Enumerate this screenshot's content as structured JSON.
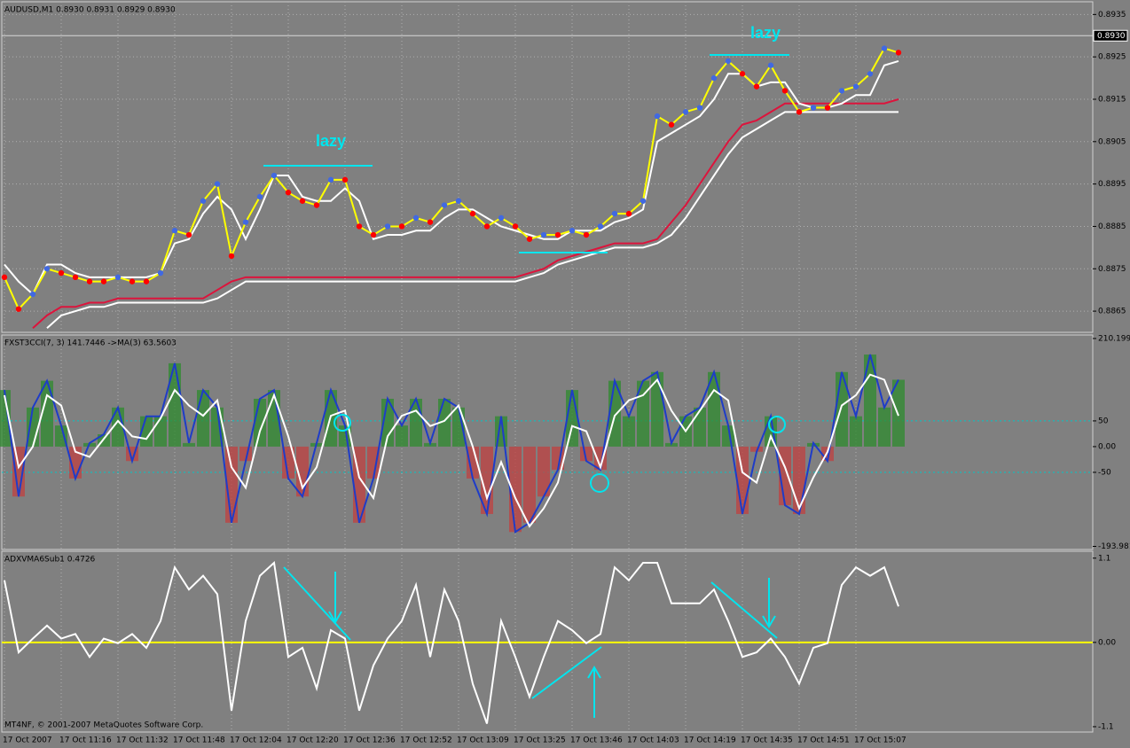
{
  "chart_data": [
    {
      "type": "line",
      "title": "AUDUSD,M1  0.8930 0.8931 0.8929 0.8930",
      "ylim": [
        0.886,
        0.8938
      ],
      "yticks": [
        0.8865,
        0.8875,
        0.8885,
        0.8895,
        0.8905,
        0.8915,
        0.8925,
        0.8935
      ],
      "grid": true,
      "price_label": {
        "value": 0.893,
        "label": "0.8930"
      },
      "annotations": [
        "lazy",
        "lazy"
      ],
      "series": [
        {
          "color": "#dc143c",
          "values": [
            null,
            null,
            0.8861,
            0.8864,
            0.8866,
            0.8866,
            0.8867,
            0.8867,
            0.8868,
            0.8868,
            0.8868,
            0.8868,
            0.8868,
            0.8868,
            0.8868,
            0.887,
            0.8872,
            0.8873,
            0.8873,
            0.8873,
            0.8873,
            0.8873,
            0.8873,
            0.8873,
            0.8873,
            0.8873,
            0.8873,
            0.8873,
            0.8873,
            0.8873,
            0.8873,
            0.8873,
            0.8873,
            0.8873,
            0.8873,
            0.8873,
            0.8873,
            0.8874,
            0.8875,
            0.8877,
            0.8878,
            0.8879,
            0.888,
            0.8881,
            0.8881,
            0.8881,
            0.8882,
            0.8886,
            0.889,
            0.8895,
            0.89,
            0.8905,
            0.8909,
            0.891,
            0.8912,
            0.8914,
            0.8914,
            0.8914,
            0.8914,
            0.8914,
            0.8914,
            0.8914,
            0.8914,
            0.8915
          ]
        },
        {
          "color": "#ffffff",
          "values": [
            null,
            null,
            null,
            0.8861,
            0.8864,
            0.8865,
            0.8866,
            0.8866,
            0.8867,
            0.8867,
            0.8867,
            0.8867,
            0.8867,
            0.8867,
            0.8867,
            0.8868,
            0.887,
            0.8872,
            0.8872,
            0.8872,
            0.8872,
            0.8872,
            0.8872,
            0.8872,
            0.8872,
            0.8872,
            0.8872,
            0.8872,
            0.8872,
            0.8872,
            0.8872,
            0.8872,
            0.8872,
            0.8872,
            0.8872,
            0.8872,
            0.8872,
            0.8873,
            0.8874,
            0.8876,
            0.8877,
            0.8878,
            0.8879,
            0.888,
            0.888,
            0.888,
            0.8881,
            0.8883,
            0.8887,
            0.8892,
            0.8897,
            0.8902,
            0.8906,
            0.8908,
            0.891,
            0.8912,
            0.8912,
            0.8912,
            0.8912,
            0.8912,
            0.8912,
            0.8912,
            0.8912,
            0.8912
          ]
        },
        {
          "color": "#ffffff",
          "values": [
            0.8876,
            0.8872,
            0.8869,
            0.8876,
            0.8876,
            0.8874,
            0.8873,
            0.8873,
            0.8873,
            0.8873,
            0.8873,
            0.8874,
            0.8881,
            0.8882,
            0.8888,
            0.8892,
            0.8889,
            0.8882,
            0.8889,
            0.8897,
            0.8897,
            0.8892,
            0.8891,
            0.8891,
            0.8894,
            0.8891,
            0.8882,
            0.8883,
            0.8883,
            0.8884,
            0.8884,
            0.8887,
            0.8889,
            0.8889,
            0.8887,
            0.8885,
            0.8884,
            0.8883,
            0.8882,
            0.8882,
            0.8884,
            0.8884,
            0.8884,
            0.8886,
            0.8887,
            0.8889,
            0.8905,
            0.8907,
            0.8909,
            0.8911,
            0.8915,
            0.8921,
            0.8921,
            0.8918,
            0.8919,
            0.8919,
            0.8914,
            0.8913,
            0.8913,
            0.8914,
            0.8916,
            0.8916,
            0.8923,
            0.8924
          ]
        },
        {
          "color": "#ffff00",
          "style": "dots",
          "up_color": "#4169e1",
          "down_color": "#ff0000",
          "values": [
            0.8873,
            0.88655,
            0.8869,
            0.8875,
            0.8874,
            0.8873,
            0.8872,
            0.8872,
            0.8873,
            0.8872,
            0.8872,
            0.8874,
            0.8884,
            0.8883,
            0.8891,
            0.8895,
            0.8878,
            0.8886,
            0.8892,
            0.8897,
            0.8893,
            0.8891,
            0.889,
            0.8896,
            0.8896,
            0.8885,
            0.8883,
            0.8885,
            0.8885,
            0.8887,
            0.8886,
            0.889,
            0.8891,
            0.8888,
            0.8885,
            0.8887,
            0.8885,
            0.8882,
            0.8883,
            0.8883,
            0.8884,
            0.8883,
            0.8885,
            0.8888,
            0.8888,
            0.8891,
            0.8911,
            0.8909,
            0.8912,
            0.8913,
            0.892,
            0.8924,
            0.8921,
            0.8918,
            0.8923,
            0.8917,
            0.8912,
            0.8913,
            0.8913,
            0.8917,
            0.8918,
            0.8921,
            0.8927,
            0.8926
          ]
        }
      ]
    },
    {
      "type": "line",
      "title": "FXST3CCI(7, 3) 141.7446  ->MA(3) 63.5603",
      "ylim": [
        -200,
        217
      ],
      "yticks": [
        {
          "value": 210.199,
          "label": "210.1990"
        },
        50,
        {
          "value": 0,
          "label": "0.00"
        },
        -50,
        {
          "value": -193.981,
          "label": "-193.981"
        }
      ],
      "grid": false,
      "levels": [
        50,
        -50
      ],
      "level_color": "#00c8c8",
      "level_style": "dashed",
      "histogram": true,
      "hist_colors": [
        "#2e8b2e",
        "#c04040"
      ],
      "series": [
        {
          "color": "#1e3cc8",
          "values": [
            110,
            -97,
            76,
            128,
            41,
            -62,
            7,
            24,
            76,
            -28,
            59,
            59,
            162,
            7,
            110,
            76,
            -148,
            -28,
            93,
            110,
            -62,
            -97,
            7,
            110,
            41,
            -148,
            -62,
            93,
            41,
            93,
            7,
            93,
            76,
            -62,
            -131,
            59,
            -166,
            -148,
            -97,
            -45,
            110,
            -28,
            -45,
            128,
            59,
            128,
            145,
            7,
            59,
            76,
            145,
            41,
            -131,
            -10,
            59,
            -114,
            -131,
            7,
            -28,
            145,
            59,
            179,
            76,
            130
          ]
        },
        {
          "color": "#ffffff",
          "values": [
            100,
            -40,
            0,
            100,
            80,
            -10,
            -20,
            15,
            50,
            20,
            15,
            55,
            110,
            80,
            60,
            90,
            -40,
            -80,
            30,
            100,
            20,
            -80,
            -40,
            60,
            70,
            -60,
            -100,
            20,
            60,
            70,
            40,
            50,
            80,
            0,
            -100,
            -30,
            -100,
            -155,
            -120,
            -70,
            40,
            30,
            -40,
            60,
            90,
            100,
            130,
            70,
            30,
            70,
            110,
            90,
            -50,
            -70,
            20,
            -40,
            -120,
            -60,
            -10,
            80,
            100,
            140,
            130,
            60
          ]
        }
      ]
    },
    {
      "type": "line",
      "title": "ADXVMA6Sub1 0.4726",
      "footer": "MT4NF, © 2001-2007 MetaQuotes Software Corp.",
      "ylim": [
        -1.17,
        1.19
      ],
      "yticks": [
        1.1,
        {
          "value": 0,
          "label": "0.00"
        },
        -1.1
      ],
      "grid": false,
      "levels": [
        0
      ],
      "level_color": "#ffff00",
      "level_style": "solid",
      "categories": [
        "17 Oct 2007",
        null,
        null,
        null,
        "17 Oct 11:16",
        null,
        null,
        null,
        "17 Oct 11:32",
        null,
        null,
        null,
        "17 Oct 11:48",
        null,
        null,
        null,
        "17 Oct 12:04",
        null,
        null,
        null,
        "17 Oct 12:20",
        null,
        null,
        null,
        "17 Oct 12:36",
        null,
        null,
        null,
        "17 Oct 12:52",
        null,
        null,
        null,
        "17 Oct 13:09",
        null,
        null,
        null,
        "17 Oct 13:25",
        null,
        null,
        null,
        "17 Oct 13:46",
        null,
        null,
        null,
        "17 Oct 14:03",
        null,
        null,
        null,
        "17 Oct 14:19",
        null,
        null,
        null,
        "17 Oct 14:35",
        null,
        null,
        null,
        "17 Oct 14:51",
        null,
        null,
        null,
        "17 Oct 15:07",
        null,
        null,
        null
      ],
      "series": [
        {
          "color": "#ffffff",
          "values": [
            0.81,
            -0.13,
            0.05,
            0.22,
            0.05,
            0.11,
            -0.19,
            0.05,
            -0.01,
            0.11,
            -0.07,
            0.28,
            0.98,
            0.69,
            0.87,
            0.63,
            -0.89,
            0.28,
            0.87,
            1.04,
            -0.19,
            -0.07,
            -0.6,
            0.16,
            0.05,
            -0.89,
            -0.3,
            0.05,
            0.28,
            0.75,
            -0.19,
            0.69,
            0.28,
            -0.54,
            -1.06,
            0.28,
            -0.19,
            -0.71,
            -0.19,
            0.28,
            0.16,
            -0.01,
            0.11,
            0.98,
            0.81,
            1.04,
            1.04,
            0.51,
            0.51,
            0.51,
            0.69,
            0.28,
            -0.19,
            -0.13,
            0.05,
            -0.19,
            -0.54,
            -0.07,
            -0.01,
            0.75,
            0.98,
            0.87,
            0.98,
            0.47
          ]
        }
      ]
    }
  ]
}
